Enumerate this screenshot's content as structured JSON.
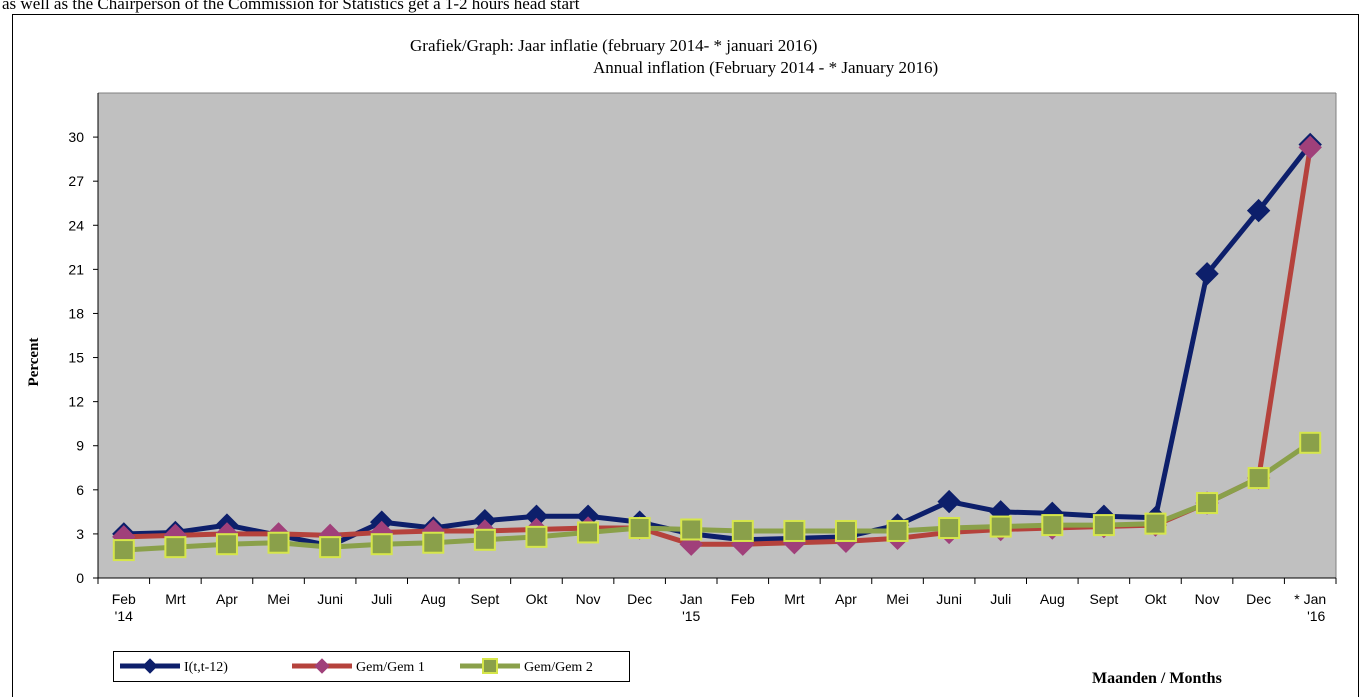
{
  "header_note": "as well as the Chairperson of the Commission for Statistics get a 1-2 hours head start",
  "chart_data": {
    "type": "line",
    "title": "Grafiek/Graph: Jaar inflatie  (february 2014-  * januari 2016)",
    "subtitle": "Annual inflation (February 2014 - * January 2016)",
    "ylabel": "Percent",
    "xlabel": "Maanden / Months",
    "ylim": [
      0,
      33
    ],
    "yticks": [
      0,
      3,
      6,
      9,
      12,
      15,
      18,
      21,
      24,
      27,
      30
    ],
    "grid": false,
    "legend": "bottom-left",
    "categories": [
      "Feb",
      "Mrt",
      "Apr",
      "Mei",
      "Juni",
      "Juli",
      "Aug",
      "Sept",
      "Okt",
      "Nov",
      "Dec",
      "Jan",
      "Feb",
      "Mrt",
      "Apr",
      "Mei",
      "Juni",
      "Juli",
      "Aug",
      "Sept",
      "Okt",
      "Nov",
      "Dec",
      "* Jan"
    ],
    "category_sublabels": [
      "'14",
      "",
      "",
      "",
      "",
      "",
      "",
      "",
      "",
      "",
      "",
      "'15",
      "",
      "",
      "",
      "",
      "",
      "",
      "",
      "",
      "",
      "",
      "",
      "'16"
    ],
    "series": [
      {
        "name": "I(t,t-12)",
        "color": "#0d1f6b",
        "marker": "diamond",
        "values": [
          3.0,
          3.1,
          3.6,
          2.9,
          2.2,
          3.8,
          3.4,
          3.9,
          4.2,
          4.2,
          3.8,
          3.0,
          2.6,
          2.7,
          2.8,
          3.6,
          5.2,
          4.5,
          4.4,
          4.2,
          4.1,
          20.7,
          25.0,
          29.5
        ]
      },
      {
        "name": "Gem/Gem 1",
        "color": "#b5423c",
        "marker": "diamond",
        "marker_color": "#a0407a",
        "values": [
          2.8,
          2.9,
          3.0,
          3.0,
          2.9,
          3.1,
          3.2,
          3.2,
          3.3,
          3.4,
          3.4,
          2.3,
          2.3,
          2.4,
          2.5,
          2.7,
          3.1,
          3.3,
          3.4,
          3.5,
          3.6,
          5.1,
          6.8,
          29.3
        ]
      },
      {
        "name": "Gem/Gem 2",
        "color": "#8aa04a",
        "marker": "square",
        "marker_color": "#8aa04a",
        "marker_edge": "#d6e64a",
        "values": [
          1.9,
          2.1,
          2.3,
          2.4,
          2.1,
          2.3,
          2.4,
          2.6,
          2.8,
          3.1,
          3.4,
          3.3,
          3.2,
          3.2,
          3.2,
          3.2,
          3.4,
          3.5,
          3.6,
          3.6,
          3.7,
          5.1,
          6.8,
          9.2
        ]
      }
    ]
  }
}
